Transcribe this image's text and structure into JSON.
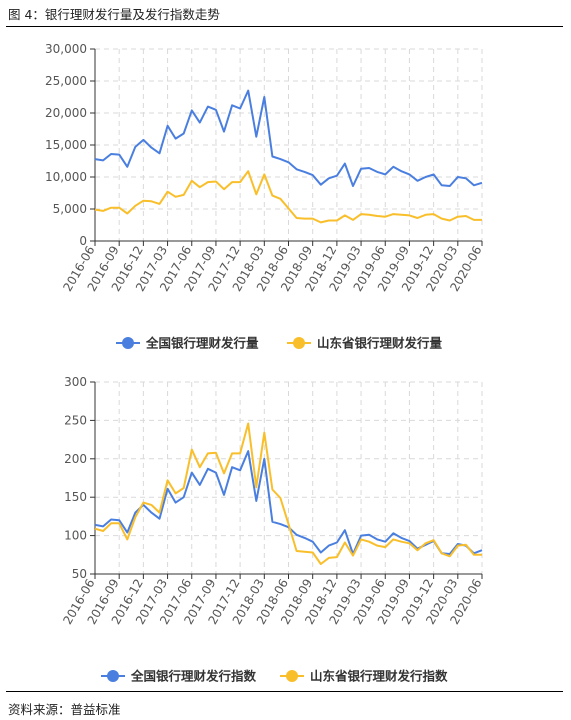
{
  "figure": {
    "title": "图 4：银行理财发行量及发行指数走势",
    "source": "资料来源：普益标准"
  },
  "colors": {
    "national": "#4a7fe0",
    "shandong": "#f9bf2b",
    "axis": "#333333",
    "grid": "#d9d9d9"
  },
  "chart_data": [
    {
      "type": "line",
      "x": [
        "2016-06",
        "2016-07",
        "2016-08",
        "2016-09",
        "2016-10",
        "2016-11",
        "2016-12",
        "2017-01",
        "2017-02",
        "2017-03",
        "2017-04",
        "2017-05",
        "2017-06",
        "2017-07",
        "2017-08",
        "2017-09",
        "2017-10",
        "2017-11",
        "2017-12",
        "2018-01",
        "2018-02",
        "2018-03",
        "2018-04",
        "2018-05",
        "2018-06",
        "2018-07",
        "2018-08",
        "2018-09",
        "2018-10",
        "2018-11",
        "2018-12",
        "2019-01",
        "2019-02",
        "2019-03",
        "2019-04",
        "2019-05",
        "2019-06",
        "2019-07",
        "2019-08",
        "2019-09",
        "2019-10",
        "2019-11",
        "2019-12",
        "2020-01",
        "2020-02",
        "2020-03",
        "2020-04",
        "2020-05",
        "2020-06"
      ],
      "x_tick_labels": [
        "2016-06",
        "2016-09",
        "2016-12",
        "2017-03",
        "2017-06",
        "2017-09",
        "2017-12",
        "2018-03",
        "2018-06",
        "2018-09",
        "2018-12",
        "2019-03",
        "2019-06",
        "2019-09",
        "2019-12",
        "2020-03",
        "2020-06"
      ],
      "ylim": [
        0,
        30000
      ],
      "y_ticks": [
        "0",
        "5,000",
        "10,000",
        "15,000",
        "20,000",
        "25,000",
        "30,000"
      ],
      "grid": true,
      "legend_position": "bottom-center",
      "series": [
        {
          "name": "全国银行理财发行量",
          "values": [
            12800,
            12600,
            13600,
            13500,
            11600,
            14700,
            15800,
            14600,
            13700,
            18000,
            16000,
            16800,
            20400,
            18500,
            21000,
            20500,
            17100,
            21200,
            20700,
            23500,
            16300,
            22500,
            13200,
            12800,
            12300,
            11200,
            10800,
            10300,
            8800,
            9800,
            10200,
            12100,
            8600,
            11300,
            11400,
            10800,
            10400,
            11600,
            10900,
            10400,
            9400,
            10000,
            10400,
            8700,
            8600,
            10000,
            9800,
            8700,
            9100
          ]
        },
        {
          "name": "山东省银行理财发行量",
          "values": [
            4900,
            4700,
            5200,
            5200,
            4300,
            5500,
            6300,
            6200,
            5800,
            7700,
            6900,
            7200,
            9400,
            8400,
            9200,
            9300,
            8100,
            9200,
            9200,
            10900,
            7300,
            10400,
            7100,
            6600,
            5100,
            3600,
            3500,
            3500,
            2900,
            3200,
            3200,
            4000,
            3300,
            4200,
            4100,
            3900,
            3800,
            4200,
            4100,
            4000,
            3600,
            4100,
            4200,
            3500,
            3200,
            3800,
            3900,
            3300,
            3300
          ]
        }
      ]
    },
    {
      "type": "line",
      "x": [
        "2016-06",
        "2016-07",
        "2016-08",
        "2016-09",
        "2016-10",
        "2016-11",
        "2016-12",
        "2017-01",
        "2017-02",
        "2017-03",
        "2017-04",
        "2017-05",
        "2017-06",
        "2017-07",
        "2017-08",
        "2017-09",
        "2017-10",
        "2017-11",
        "2017-12",
        "2018-01",
        "2018-02",
        "2018-03",
        "2018-04",
        "2018-05",
        "2018-06",
        "2018-07",
        "2018-08",
        "2018-09",
        "2018-10",
        "2018-11",
        "2018-12",
        "2019-01",
        "2019-02",
        "2019-03",
        "2019-04",
        "2019-05",
        "2019-06",
        "2019-07",
        "2019-08",
        "2019-09",
        "2019-10",
        "2019-11",
        "2019-12",
        "2020-01",
        "2020-02",
        "2020-03",
        "2020-04",
        "2020-05",
        "2020-06"
      ],
      "x_tick_labels": [
        "2016-06",
        "2016-09",
        "2016-12",
        "2017-03",
        "2017-06",
        "2017-09",
        "2017-12",
        "2018-03",
        "2018-06",
        "2018-09",
        "2018-12",
        "2019-03",
        "2019-06",
        "2019-09",
        "2019-12",
        "2020-03",
        "2020-06"
      ],
      "ylim": [
        50,
        300
      ],
      "y_ticks": [
        "50",
        "100",
        "150",
        "200",
        "250",
        "300"
      ],
      "grid": true,
      "legend_position": "bottom-center",
      "series": [
        {
          "name": "全国银行理财发行指数",
          "values": [
            114,
            112,
            121,
            120,
            104,
            130,
            140,
            130,
            122,
            161,
            143,
            150,
            182,
            166,
            187,
            182,
            153,
            189,
            185,
            210,
            145,
            200,
            118,
            115,
            111,
            101,
            97,
            92,
            78,
            87,
            91,
            107,
            76,
            100,
            101,
            95,
            92,
            103,
            97,
            93,
            83,
            88,
            93,
            77,
            76,
            89,
            87,
            77,
            81
          ]
        },
        {
          "name": "山东省银行理财发行指数",
          "values": [
            109,
            106,
            116,
            116,
            95,
            124,
            143,
            140,
            130,
            172,
            155,
            162,
            212,
            189,
            207,
            208,
            181,
            207,
            207,
            246,
            163,
            234,
            160,
            149,
            115,
            80,
            79,
            78,
            63,
            71,
            72,
            91,
            74,
            95,
            92,
            87,
            85,
            95,
            92,
            90,
            81,
            90,
            94,
            77,
            73,
            87,
            88,
            75,
            75
          ]
        }
      ]
    }
  ]
}
